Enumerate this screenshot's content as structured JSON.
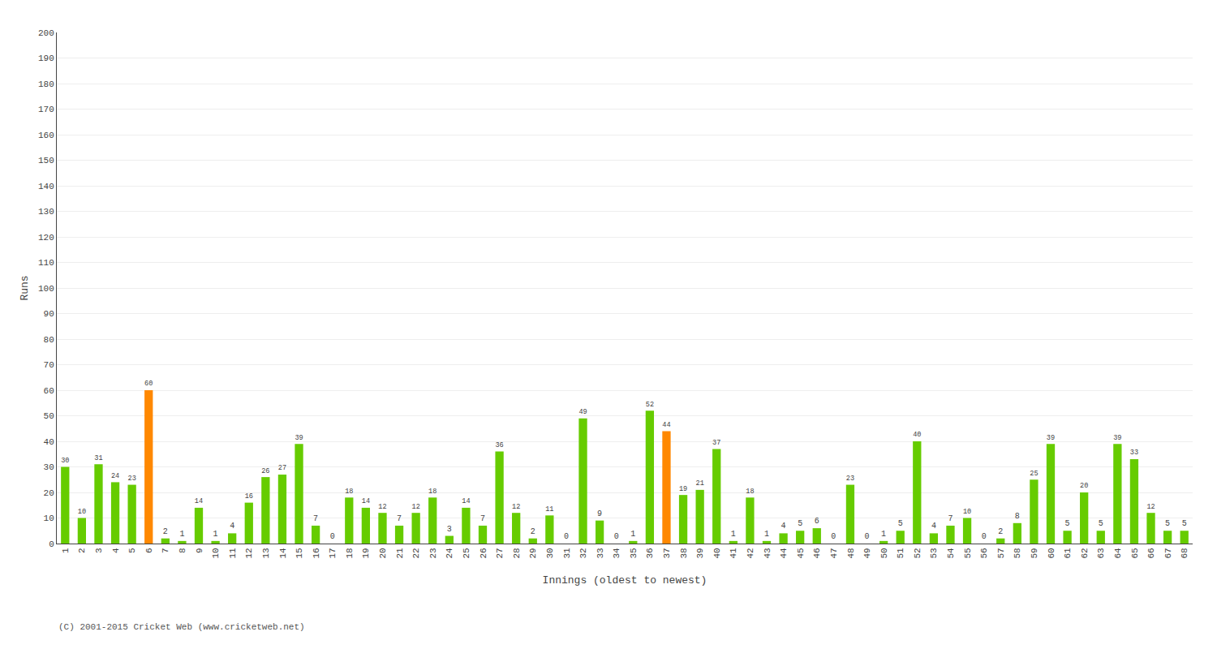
{
  "chart_data": {
    "type": "bar",
    "xlabel": "Innings (oldest to newest)",
    "ylabel": "Runs",
    "annotations": [
      "(C) 2001-2015 Cricket Web (www.cricketweb.net)"
    ],
    "categories": [
      "1",
      "2",
      "3",
      "4",
      "5",
      "6",
      "7",
      "8",
      "9",
      "10",
      "11",
      "12",
      "13",
      "14",
      "15",
      "16",
      "17",
      "18",
      "19",
      "20",
      "21",
      "22",
      "23",
      "24",
      "25",
      "26",
      "27",
      "28",
      "29",
      "30",
      "31",
      "32",
      "33",
      "34",
      "35",
      "36",
      "37",
      "38",
      "39",
      "40",
      "41",
      "42",
      "43",
      "44",
      "45",
      "46",
      "47",
      "48",
      "49",
      "50",
      "51",
      "52",
      "53",
      "54",
      "55",
      "56",
      "57",
      "58",
      "59",
      "60",
      "61",
      "62",
      "63",
      "64",
      "65",
      "66",
      "67",
      "68"
    ],
    "values": [
      30,
      10,
      31,
      24,
      23,
      60,
      2,
      1,
      14,
      1,
      4,
      16,
      26,
      27,
      39,
      7,
      0,
      18,
      14,
      12,
      7,
      12,
      18,
      3,
      14,
      7,
      36,
      12,
      2,
      11,
      0,
      49,
      9,
      0,
      1,
      52,
      44,
      19,
      21,
      37,
      1,
      18,
      1,
      4,
      5,
      6,
      0,
      23,
      0,
      1,
      5,
      40,
      4,
      7,
      10,
      0,
      2,
      8,
      25,
      39,
      5,
      20,
      5,
      39,
      33,
      12,
      5,
      5
    ],
    "colors": [
      "#66cc00",
      "#66cc00",
      "#66cc00",
      "#66cc00",
      "#66cc00",
      "#ff8800",
      "#66cc00",
      "#66cc00",
      "#66cc00",
      "#66cc00",
      "#66cc00",
      "#66cc00",
      "#66cc00",
      "#66cc00",
      "#66cc00",
      "#66cc00",
      "#66cc00",
      "#66cc00",
      "#66cc00",
      "#66cc00",
      "#66cc00",
      "#66cc00",
      "#66cc00",
      "#66cc00",
      "#66cc00",
      "#66cc00",
      "#66cc00",
      "#66cc00",
      "#66cc00",
      "#66cc00",
      "#66cc00",
      "#66cc00",
      "#66cc00",
      "#66cc00",
      "#66cc00",
      "#66cc00",
      "#ff8800",
      "#66cc00",
      "#66cc00",
      "#66cc00",
      "#66cc00",
      "#66cc00",
      "#66cc00",
      "#66cc00",
      "#66cc00",
      "#66cc00",
      "#66cc00",
      "#66cc00",
      "#66cc00",
      "#66cc00",
      "#66cc00",
      "#66cc00",
      "#66cc00",
      "#66cc00",
      "#66cc00",
      "#66cc00",
      "#66cc00",
      "#66cc00",
      "#66cc00",
      "#66cc00",
      "#66cc00",
      "#66cc00",
      "#66cc00",
      "#66cc00",
      "#66cc00",
      "#66cc00",
      "#66cc00",
      "#66cc00"
    ],
    "ylim": [
      0,
      200
    ],
    "yticks": [
      0,
      10,
      20,
      30,
      40,
      50,
      60,
      70,
      80,
      90,
      100,
      110,
      120,
      130,
      140,
      150,
      160,
      170,
      180,
      190,
      200
    ],
    "grid": true,
    "data_labels": true
  }
}
